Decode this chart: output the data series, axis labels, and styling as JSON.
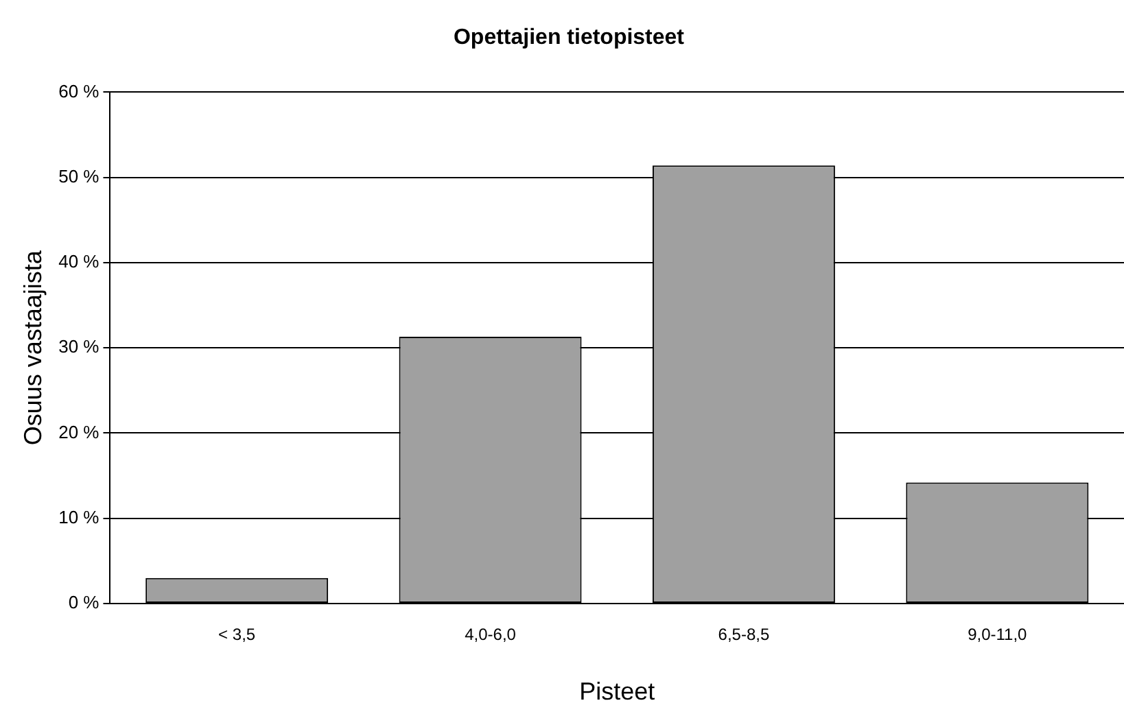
{
  "chart_data": {
    "type": "bar",
    "title": "Opettajien tietopisteet",
    "xlabel": "Pisteet",
    "ylabel": "Osuus vastaajista",
    "categories": [
      "< 3,5",
      "4,0-6,0",
      "6,5-8,5",
      "9,0-11,0"
    ],
    "values": [
      3.0,
      31.3,
      51.4,
      14.2
    ],
    "color": "#a0a0a0",
    "ylim": [
      0,
      60
    ],
    "yticks": [
      {
        "value": 0,
        "label": "0 %"
      },
      {
        "value": 10,
        "label": "10 %"
      },
      {
        "value": 20,
        "label": "20 %"
      },
      {
        "value": 30,
        "label": "30 %"
      },
      {
        "value": 40,
        "label": "40 %"
      },
      {
        "value": 50,
        "label": "50 %"
      },
      {
        "value": 60,
        "label": "60 %"
      }
    ],
    "grid": "y"
  }
}
